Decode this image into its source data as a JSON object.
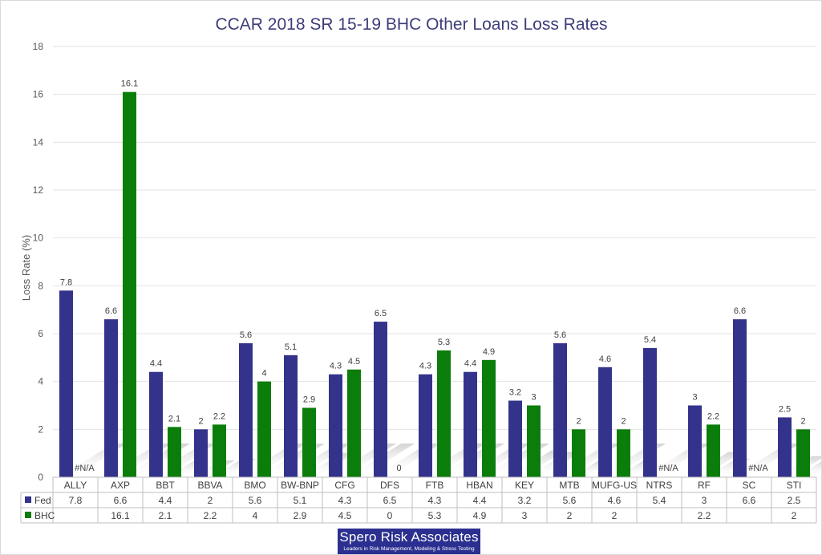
{
  "chart_data": {
    "type": "bar",
    "title": "CCAR 2018 SR 15-19 BHC Other Loans Loss Rates",
    "ylabel": "Loss Rate (%)",
    "xlabel": "",
    "ylim": [
      0,
      18
    ],
    "yticks": [
      0,
      2,
      4,
      6,
      8,
      10,
      12,
      14,
      16,
      18
    ],
    "grid": true,
    "legend": "data-table",
    "categories": [
      "ALLY",
      "AXP",
      "BBT",
      "BBVA",
      "BMO",
      "BW-BNP",
      "CFG",
      "DFS",
      "FTB",
      "HBAN",
      "KEY",
      "MTB",
      "MUFG-US",
      "NTRS",
      "RF",
      "SC",
      "STI"
    ],
    "series": [
      {
        "name": "Fed",
        "color": "#33338c",
        "values": [
          7.8,
          6.6,
          4.4,
          2,
          5.6,
          5.1,
          4.3,
          6.5,
          4.3,
          4.4,
          3.2,
          5.6,
          4.6,
          5.4,
          3,
          6.6,
          2.5
        ],
        "labels": [
          "7.8",
          "6.6",
          "4.4",
          "2",
          "5.6",
          "5.1",
          "4.3",
          "6.5",
          "4.3",
          "4.4",
          "3.2",
          "5.6",
          "4.6",
          "5.4",
          "3",
          "6.6",
          "2.5"
        ],
        "table": [
          "7.8",
          "6.6",
          "4.4",
          "2",
          "5.6",
          "5.1",
          "4.3",
          "6.5",
          "4.3",
          "4.4",
          "3.2",
          "5.6",
          "4.6",
          "5.4",
          "3",
          "6.6",
          "2.5"
        ]
      },
      {
        "name": "BHC",
        "color": "#0a7d0a",
        "values": [
          null,
          16.1,
          2.1,
          2.2,
          4,
          2.9,
          4.5,
          0,
          5.3,
          4.9,
          3,
          2,
          2,
          null,
          2.2,
          null,
          2
        ],
        "labels": [
          "#N/A",
          "16.1",
          "2.1",
          "2.2",
          "4",
          "2.9",
          "4.5",
          "0",
          "5.3",
          "4.9",
          "3",
          "2",
          "2",
          "#N/A",
          "2.2",
          "#N/A",
          "2"
        ],
        "table": [
          "",
          "16.1",
          "2.1",
          "2.2",
          "4",
          "2.9",
          "4.5",
          "0",
          "5.3",
          "4.9",
          "3",
          "2",
          "2",
          "",
          "2.2",
          "",
          "2"
        ]
      }
    ]
  },
  "logo": {
    "name": "Spero Risk Associates",
    "tagline": "Leaders in Risk Management, Modeling & Stress Testing"
  }
}
